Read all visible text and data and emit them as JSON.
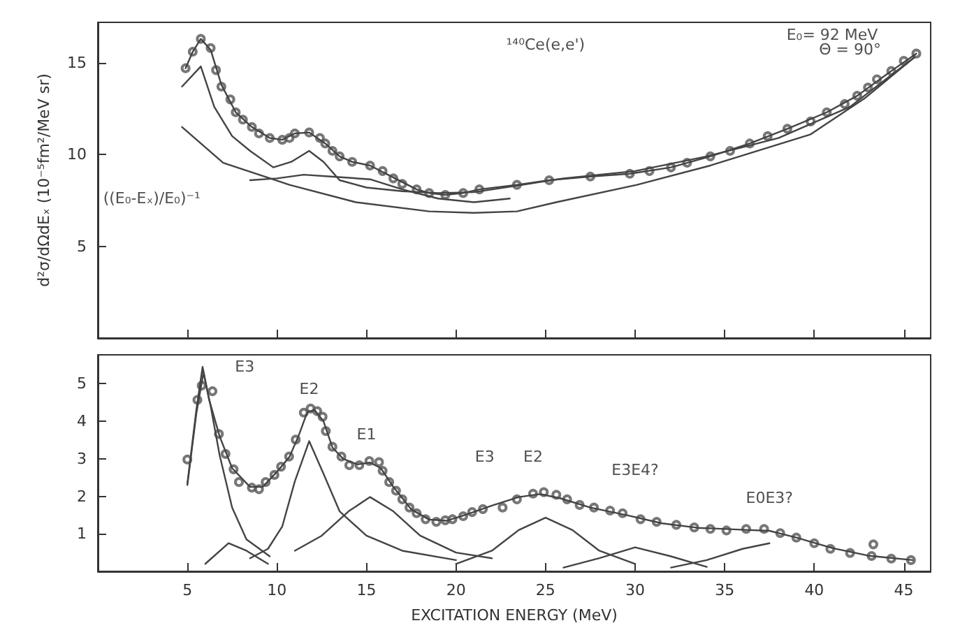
{
  "chart_data": [
    {
      "type": "line",
      "ylabel": "d²σ/dΩdEₓ (10⁻⁵fm²/MeV sr)",
      "xlim": [
        0,
        46.5
      ],
      "xticks": [
        5,
        10,
        15,
        20,
        25,
        30,
        35,
        40,
        45
      ],
      "ylim": [
        0,
        17.2
      ],
      "yticks": [
        5,
        10,
        15
      ],
      "tick_labels": "y",
      "grid": false,
      "annotations": [
        "¹⁴⁰Ce(e,e')",
        "E₀= 92 MeV",
        "Θ = 90°",
        "((E₀-Eₓ)/E₀)⁻¹"
      ],
      "series": [
        {
          "type": "scatter",
          "marker": "circle",
          "color": "#555555",
          "x": [
            4.9,
            5.3,
            5.75,
            6.3,
            6.6,
            6.9,
            7.4,
            7.7,
            8.1,
            8.6,
            9.0,
            9.6,
            10.3,
            10.7,
            11.0,
            11.8,
            12.4,
            12.7,
            13.1,
            13.5,
            14.2,
            15.2,
            15.9,
            16.5,
            17.0,
            17.8,
            18.5,
            19.4,
            20.4,
            21.3,
            23.4,
            25.2,
            27.5,
            29.7,
            30.8,
            32.0,
            32.9,
            34.2,
            35.3,
            36.4,
            37.4,
            38.5,
            39.8,
            40.7,
            41.7,
            42.4,
            43.0,
            43.5,
            44.3,
            45.0,
            45.7
          ],
          "values": [
            14.7,
            15.6,
            16.3,
            15.8,
            14.6,
            13.7,
            13.0,
            12.3,
            11.9,
            11.5,
            11.15,
            10.9,
            10.8,
            10.9,
            11.15,
            11.2,
            10.9,
            10.6,
            10.2,
            9.9,
            9.6,
            9.4,
            9.1,
            8.7,
            8.4,
            8.1,
            7.9,
            7.8,
            7.9,
            8.1,
            8.35,
            8.6,
            8.8,
            8.95,
            9.1,
            9.3,
            9.55,
            9.9,
            10.2,
            10.6,
            11.0,
            11.4,
            11.8,
            12.3,
            12.75,
            13.2,
            13.65,
            14.1,
            14.55,
            15.1,
            15.5
          ]
        },
        {
          "marker": "none",
          "line_style": "solid",
          "color": "#444444",
          "x": [
            4.9,
            5.3,
            5.75,
            6.3,
            6.9,
            7.7,
            8.6,
            9.6,
            10.3,
            11.0,
            11.8,
            12.7,
            13.5,
            14.2,
            15.2,
            16.5,
            17.8,
            18.5,
            19.4,
            20.4,
            21.3,
            23.4,
            25.2,
            27.5,
            29.7,
            32.0,
            34.2,
            36.4,
            38.5,
            40.7,
            42.4,
            44.3,
            45.7
          ],
          "values": [
            14.7,
            15.6,
            16.3,
            15.7,
            13.8,
            12.3,
            11.5,
            10.9,
            10.8,
            11.15,
            11.2,
            10.6,
            9.9,
            9.6,
            9.4,
            8.75,
            8.1,
            7.9,
            7.8,
            7.9,
            8.1,
            8.35,
            8.6,
            8.8,
            8.95,
            9.3,
            9.9,
            10.6,
            11.4,
            12.3,
            13.2,
            14.55,
            15.5
          ]
        },
        {
          "type": "line",
          "marker": "none",
          "line_style": "solid",
          "color": "#444444",
          "x": [
            4.7,
            5.75,
            6.5,
            7.5,
            8.5,
            9.8,
            10.8,
            11.8,
            12.6,
            13.5,
            15,
            17,
            19,
            21,
            23.4,
            26,
            30,
            34,
            38,
            42,
            45.6
          ],
          "values": [
            13.7,
            14.8,
            12.6,
            11.0,
            10.2,
            9.3,
            9.6,
            10.2,
            9.6,
            8.6,
            8.2,
            8.0,
            7.9,
            7.95,
            8.3,
            8.7,
            9.1,
            9.9,
            10.9,
            12.6,
            15.3
          ]
        },
        {
          "type": "line",
          "marker": "none",
          "line_style": "solid",
          "color": "#444444",
          "x": [
            8.5,
            10,
            11.5,
            13,
            15.2,
            17,
            19,
            21,
            23
          ],
          "values": [
            8.6,
            8.7,
            8.9,
            8.8,
            8.65,
            8.1,
            7.6,
            7.4,
            7.6
          ]
        },
        {
          "type": "line",
          "marker": "none",
          "line_style": "solid",
          "color": "#444444",
          "x": [
            4.7,
            7,
            10.7,
            14.4,
            18.5,
            21,
            23.4,
            25.6,
            30.1,
            34.2,
            39.8,
            42.8,
            45.6
          ],
          "values": [
            11.5,
            9.55,
            8.35,
            7.4,
            6.9,
            6.82,
            6.9,
            7.4,
            8.35,
            9.4,
            11.1,
            13.05,
            15.3
          ]
        }
      ]
    },
    {
      "type": "line",
      "xlabel": "EXCITATION ENERGY (MeV)",
      "xlim": [
        0,
        46.5
      ],
      "xticks": [
        5,
        10,
        15,
        20,
        25,
        30,
        35,
        40,
        45
      ],
      "ylim": [
        0,
        5.77
      ],
      "yticks": [
        1,
        2,
        3,
        4,
        5
      ],
      "grid": false,
      "annotations": [
        "E3",
        "E2",
        "E1",
        "E3",
        "E2",
        "E3E4?",
        "E0E3?"
      ],
      "series": [
        {
          "type": "scatter",
          "marker": "circle",
          "color": "#555555",
          "x": [
            5.0,
            5.56,
            5.8,
            6.4,
            6.76,
            7.13,
            7.58,
            7.88,
            8.6,
            9.0,
            9.37,
            9.86,
            10.23,
            10.68,
            11.05,
            11.5,
            11.88,
            12.25,
            12.55,
            12.73,
            13.1,
            13.6,
            14.04,
            14.6,
            15.16,
            15.7,
            15.9,
            16.27,
            16.65,
            17.0,
            17.4,
            17.8,
            18.3,
            18.9,
            19.4,
            19.8,
            20.4,
            20.9,
            21.5,
            22.6,
            23.4,
            24.3,
            24.9,
            25.6,
            26.2,
            26.9,
            27.7,
            28.6,
            29.3,
            30.3,
            31.2,
            32.3,
            33.3,
            34.2,
            35.1,
            36.2,
            37.2,
            38.1,
            39.0,
            40.0,
            40.9,
            42.0,
            43.2,
            43.3,
            44.3,
            45.4
          ],
          "values": [
            2.98,
            4.57,
            4.95,
            4.8,
            3.66,
            3.13,
            2.72,
            2.38,
            2.23,
            2.19,
            2.38,
            2.57,
            2.79,
            3.06,
            3.51,
            4.23,
            4.34,
            4.27,
            4.12,
            3.74,
            3.32,
            3.06,
            2.83,
            2.83,
            2.94,
            2.91,
            2.68,
            2.38,
            2.15,
            1.92,
            1.7,
            1.55,
            1.39,
            1.32,
            1.36,
            1.39,
            1.47,
            1.58,
            1.66,
            1.7,
            1.92,
            2.07,
            2.11,
            2.04,
            1.92,
            1.77,
            1.7,
            1.62,
            1.55,
            1.39,
            1.32,
            1.24,
            1.17,
            1.13,
            1.09,
            1.13,
            1.13,
            1.02,
            0.9,
            0.75,
            0.6,
            0.49,
            0.41,
            0.72,
            0.34,
            0.3
          ]
        },
        {
          "marker": "none",
          "line_style": "solid",
          "color": "#444444",
          "x": [
            5.0,
            5.5,
            5.85,
            6.2,
            6.8,
            7.5,
            8.5,
            9.2,
            10,
            10.7,
            11.2,
            11.7,
            12.1,
            12.6,
            13.1,
            13.7,
            14.5,
            15.2,
            15.8,
            16.5,
            17.5,
            18.5,
            19.5,
            20.5,
            22,
            23.5,
            24.7,
            25.8,
            27.5,
            29.5,
            31.5,
            33.5,
            35.5,
            37.5,
            39,
            41,
            43,
            45.5
          ],
          "values": [
            2.34,
            4.3,
            5.45,
            4.6,
            3.6,
            2.75,
            2.25,
            2.25,
            2.65,
            3.05,
            3.6,
            4.25,
            4.3,
            4.0,
            3.3,
            3.0,
            2.85,
            2.9,
            2.75,
            2.25,
            1.65,
            1.38,
            1.35,
            1.5,
            1.75,
            1.98,
            2.06,
            1.95,
            1.7,
            1.5,
            1.28,
            1.16,
            1.12,
            1.08,
            0.9,
            0.62,
            0.42,
            0.3
          ]
        },
        {
          "type": "line",
          "marker": "none",
          "line_style": "solid",
          "color": "#444444",
          "x": [
            5,
            5.5,
            5.9,
            6.3,
            6.8,
            7.5,
            8.3,
            9.6
          ],
          "values": [
            2.3,
            4.2,
            5.3,
            4.4,
            3.1,
            1.7,
            0.85,
            0.4
          ]
        },
        {
          "type": "line",
          "marker": "none",
          "line_style": "solid",
          "color": "#444444",
          "x": [
            6,
            7.3,
            8.3,
            9.5
          ],
          "values": [
            0.2,
            0.75,
            0.55,
            0.2
          ]
        },
        {
          "type": "line",
          "marker": "none",
          "line_style": "solid",
          "color": "#444444",
          "x": [
            8.5,
            9.5,
            10.3,
            11,
            11.8,
            12.6,
            13.5,
            15,
            17,
            20
          ],
          "values": [
            0.35,
            0.6,
            1.2,
            2.4,
            3.47,
            2.6,
            1.6,
            0.95,
            0.55,
            0.3
          ]
        },
        {
          "type": "line",
          "marker": "none",
          "line_style": "solid",
          "color": "#444444",
          "x": [
            11,
            12.5,
            14,
            15.2,
            16.5,
            18,
            20,
            22
          ],
          "values": [
            0.55,
            0.95,
            1.6,
            1.98,
            1.6,
            0.95,
            0.5,
            0.35
          ]
        },
        {
          "type": "line",
          "marker": "none",
          "line_style": "solid",
          "color": "#444444",
          "x": [
            20,
            22,
            23.5,
            25,
            26.5,
            28,
            30
          ],
          "values": [
            0.2,
            0.55,
            1.1,
            1.43,
            1.1,
            0.55,
            0.2
          ]
        },
        {
          "type": "line",
          "marker": "none",
          "line_style": "solid",
          "color": "#444444",
          "x": [
            26,
            28,
            30,
            32,
            34
          ],
          "values": [
            0.1,
            0.35,
            0.64,
            0.4,
            0.12
          ]
        },
        {
          "type": "line",
          "marker": "none",
          "line_style": "solid",
          "color": "#444444",
          "x": [
            32,
            34,
            36,
            37.5
          ],
          "values": [
            0.1,
            0.3,
            0.6,
            0.75
          ]
        }
      ]
    }
  ]
}
